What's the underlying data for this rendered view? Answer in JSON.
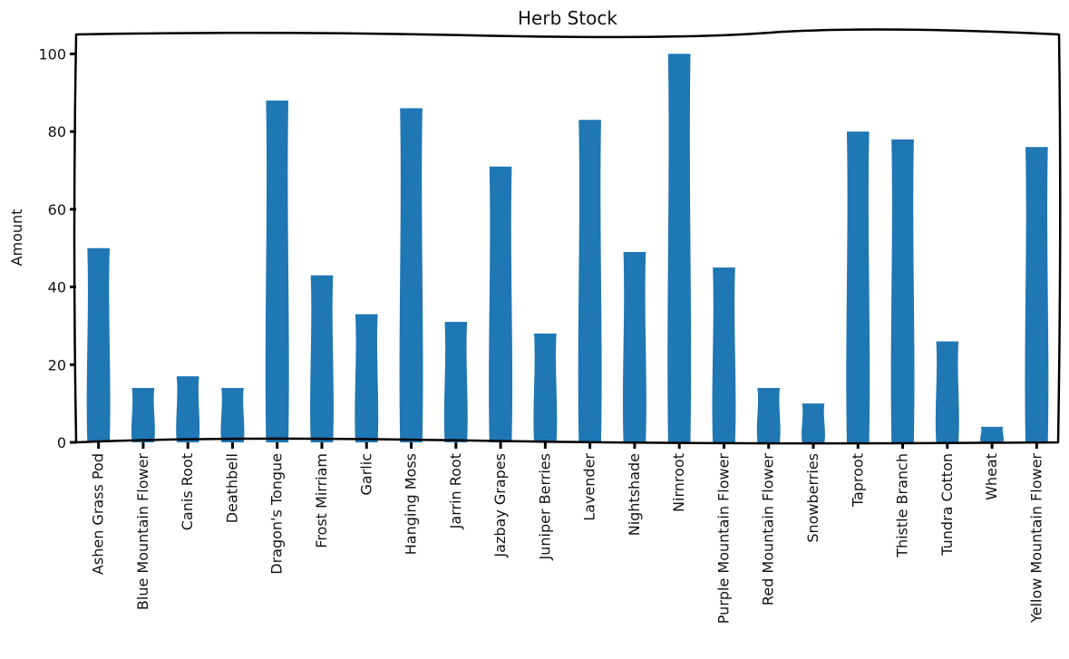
{
  "chart_data": {
    "type": "bar",
    "title": "Herb Stock",
    "xlabel": "",
    "ylabel": "Amount",
    "ylim": [
      0,
      105
    ],
    "yticks": [
      0,
      20,
      40,
      60,
      80,
      100
    ],
    "grid": false,
    "legend": "none",
    "bar_color": "#1f77b4",
    "categories": [
      "Ashen Grass Pod",
      "Blue Mountain Flower",
      "Canis Root",
      "Deathbell",
      "Dragon's Tongue",
      "Frost Mirriam",
      "Garlic",
      "Hanging Moss",
      "Jarrin Root",
      "Jazbay Grapes",
      "Juniper Berries",
      "Lavender",
      "Nightshade",
      "Nirnroot",
      "Purple Mountain Flower",
      "Red Mountain Flower",
      "Snowberries",
      "Taproot",
      "Thistle Branch",
      "Tundra Cotton",
      "Wheat",
      "Yellow Mountain Flower"
    ],
    "values": [
      50,
      14,
      17,
      14,
      88,
      43,
      33,
      86,
      31,
      71,
      28,
      83,
      49,
      100,
      45,
      14,
      10,
      80,
      78,
      26,
      4,
      76
    ]
  }
}
